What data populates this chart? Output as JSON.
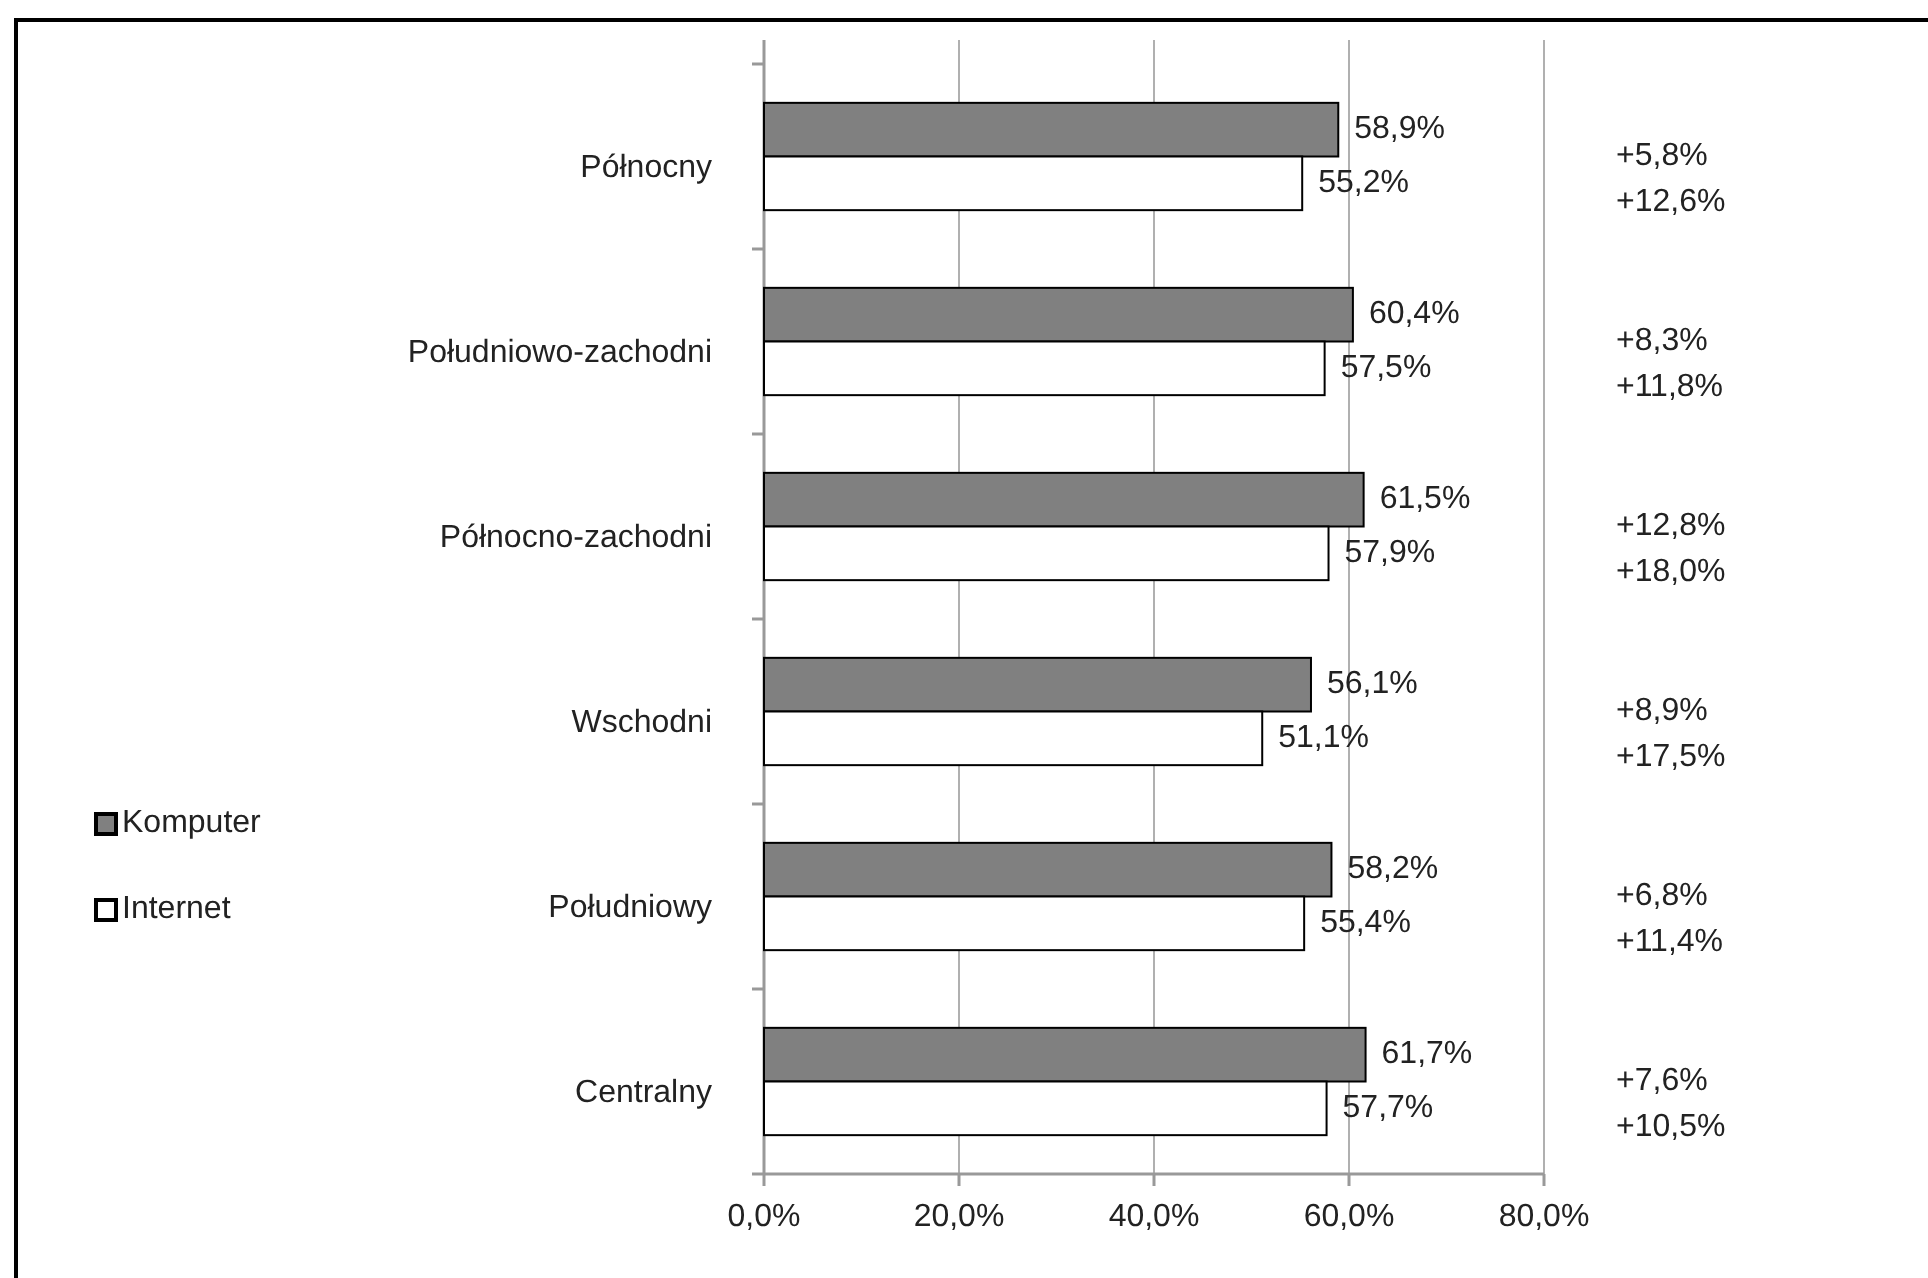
{
  "chart_data": {
    "type": "bar",
    "orientation": "horizontal",
    "categories": [
      "Północny",
      "Południowo-zachodni",
      "Północno-zachodni",
      "Wschodni",
      "Południowy",
      "Centralny"
    ],
    "series": [
      {
        "name": "Komputer",
        "color": "#808080",
        "values": [
          58.9,
          60.4,
          61.5,
          56.1,
          58.2,
          61.7
        ],
        "value_labels": [
          "58,9%",
          "60,4%",
          "61,5%",
          "56,1%",
          "58,2%",
          "61,7%"
        ]
      },
      {
        "name": "Internet",
        "color": "#ffffff",
        "values": [
          55.2,
          57.5,
          57.9,
          51.1,
          55.4,
          57.7
        ],
        "value_labels": [
          "55,2%",
          "57,5%",
          "57,9%",
          "51,1%",
          "55,4%",
          "57,7%"
        ]
      }
    ],
    "xlim": [
      0,
      80
    ],
    "xticks": [
      {
        "value": 0,
        "label": "0,0%"
      },
      {
        "value": 20,
        "label": "20,0%"
      },
      {
        "value": 40,
        "label": "40,0%"
      },
      {
        "value": 60,
        "label": "60,0%"
      },
      {
        "value": 80,
        "label": "80,0%"
      }
    ],
    "grid": "x",
    "legend": "left",
    "annotations": [
      "+5,8%",
      "+12,6%",
      "+8,3%",
      "+11,8%",
      "+12,8%",
      "+18,0%",
      "+8,9%",
      "+17,5%",
      "+6,8%",
      "+11,4%",
      "+7,6%",
      "+10,5%"
    ]
  }
}
